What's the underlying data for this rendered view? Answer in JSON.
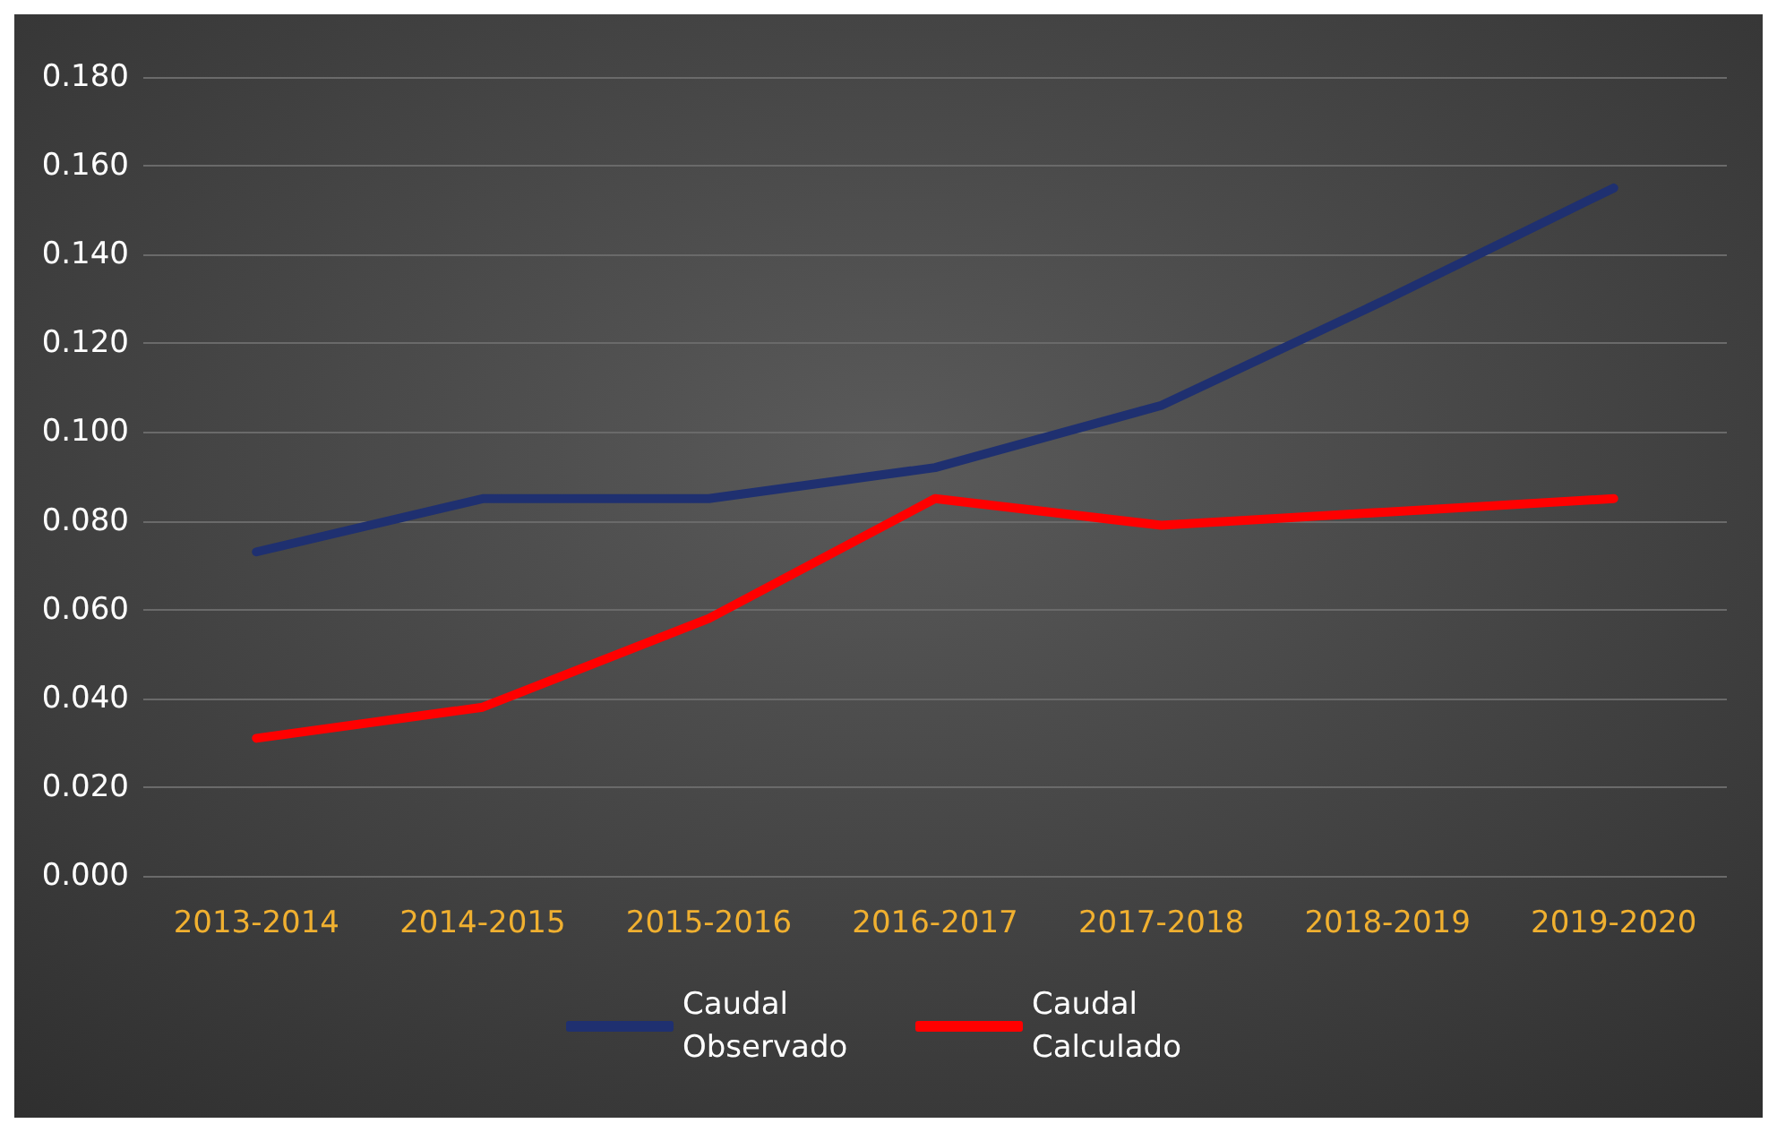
{
  "chart_data": {
    "type": "line",
    "categories": [
      "2013-2014",
      "2014-2015",
      "2015-2016",
      "2016-2017",
      "2017-2018",
      "2018-2019",
      "2019-2020"
    ],
    "series": [
      {
        "name": "Caudal Observado",
        "color": "#1f3070",
        "values": [
          0.073,
          0.085,
          0.085,
          0.092,
          0.106,
          0.13,
          0.155
        ]
      },
      {
        "name": "Caudal Calculado",
        "color": "#ff0000",
        "values": [
          0.031,
          0.038,
          0.058,
          0.085,
          0.079,
          0.082,
          0.085
        ]
      }
    ],
    "ylim": [
      0,
      0.18
    ],
    "yticks": [
      {
        "value": 0,
        "label": "0.000"
      },
      {
        "value": 0.02,
        "label": "0.020"
      },
      {
        "value": 0.04,
        "label": "0.040"
      },
      {
        "value": 0.06,
        "label": "0.060"
      },
      {
        "value": 0.08,
        "label": "0.080"
      },
      {
        "value": 0.1,
        "label": "0.100"
      },
      {
        "value": 0.12,
        "label": "0.120"
      },
      {
        "value": 0.14,
        "label": "0.140"
      },
      {
        "value": 0.16,
        "label": "0.160"
      },
      {
        "value": 0.18,
        "label": "0.180"
      }
    ],
    "grid": "y",
    "legend": "bottom",
    "marker": "none",
    "line_style": "solid"
  }
}
